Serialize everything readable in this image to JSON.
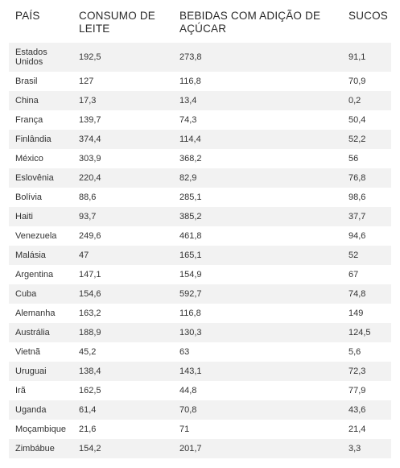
{
  "table": {
    "headers": [
      "PAÍS",
      "CONSUMO DE LEITE",
      "BEBIDAS COM ADIÇÃO DE AÇÚCAR",
      "SUCOS"
    ],
    "rows": [
      [
        "Estados Unidos",
        "192,5",
        "273,8",
        "91,1"
      ],
      [
        "Brasil",
        "127",
        "116,8",
        "70,9"
      ],
      [
        "China",
        "17,3",
        "13,4",
        "0,2"
      ],
      [
        "França",
        "139,7",
        "74,3",
        "50,4"
      ],
      [
        "Finlândia",
        "374,4",
        "114,4",
        "52,2"
      ],
      [
        "México",
        "303,9",
        "368,2",
        "56"
      ],
      [
        "Eslovênia",
        "220,4",
        "82,9",
        "76,8"
      ],
      [
        "Bolívia",
        "88,6",
        "285,1",
        "98,6"
      ],
      [
        "Haiti",
        "93,7",
        "385,2",
        "37,7"
      ],
      [
        "Venezuela",
        "249,6",
        "461,8",
        "94,6"
      ],
      [
        "Malásia",
        "47",
        "165,1",
        "52"
      ],
      [
        "Argentina",
        "147,1",
        "154,9",
        "67"
      ],
      [
        "Cuba",
        "154,6",
        "592,7",
        "74,8"
      ],
      [
        "Alemanha",
        "163,2",
        "116,8",
        "149"
      ],
      [
        "Austrália",
        "188,9",
        "130,3",
        "124,5"
      ],
      [
        "Vietnã",
        "45,2",
        "63",
        "5,6"
      ],
      [
        "Uruguai",
        "138,4",
        "143,1",
        "72,3"
      ],
      [
        "Irã",
        "162,5",
        "44,8",
        "77,9"
      ],
      [
        "Uganda",
        "61,4",
        "70,8",
        "43,6"
      ],
      [
        "Moçambique",
        "21,6",
        "71",
        "21,4"
      ],
      [
        "Zimbábue",
        "154,2",
        "201,7",
        "3,3"
      ]
    ]
  },
  "colors": {
    "stripe": "#f2f2f2",
    "text": "#333333"
  }
}
